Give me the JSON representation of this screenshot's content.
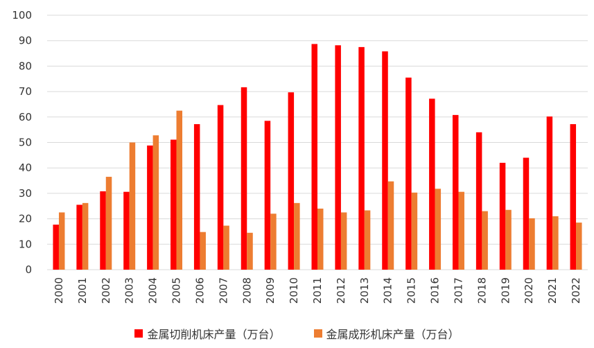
{
  "colors": {
    "cutting": "#ff0000",
    "forming": "#ed7d31",
    "grid": "#d9d9d9",
    "text": "#333333"
  },
  "chart_data": {
    "type": "bar",
    "title": "",
    "xlabel": "",
    "ylabel": "",
    "ylim": [
      0,
      100
    ],
    "yticks": [
      0,
      10,
      20,
      30,
      40,
      50,
      60,
      70,
      80,
      90,
      100
    ],
    "grid": true,
    "legend_position": "bottom",
    "categories": [
      "2000",
      "2001",
      "2002",
      "2003",
      "2004",
      "2005",
      "2006",
      "2007",
      "2008",
      "2009",
      "2010",
      "2011",
      "2012",
      "2013",
      "2014",
      "2015",
      "2016",
      "2017",
      "2018",
      "2019",
      "2020",
      "2021",
      "2022"
    ],
    "series": [
      {
        "name": "金属切削机床产量（万台）",
        "values": [
          17.7,
          25.5,
          30.8,
          30.6,
          48.8,
          51.1,
          57.2,
          64.7,
          71.7,
          58.5,
          69.7,
          88.7,
          88.2,
          87.5,
          85.8,
          75.5,
          67.2,
          60.8,
          54.0,
          42.0,
          44.0,
          60.2,
          57.2
        ]
      },
      {
        "name": "金属成形机床产量（万台）",
        "values": [
          22.5,
          26.2,
          36.5,
          50.0,
          52.8,
          62.5,
          14.8,
          17.3,
          14.5,
          22.0,
          26.2,
          24.0,
          22.5,
          23.3,
          34.7,
          30.3,
          31.8,
          30.6,
          23.0,
          23.5,
          20.2,
          21.0,
          18.5
        ]
      }
    ]
  }
}
